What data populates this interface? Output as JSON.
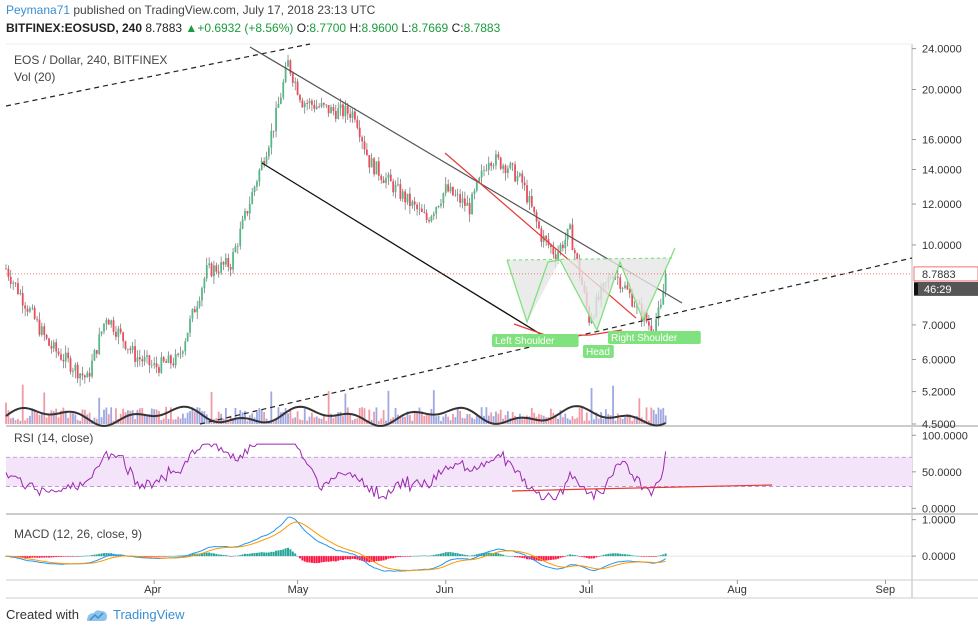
{
  "header": {
    "author": "Peymana71",
    "published_text": " published on TradingView.com, July 17, 2018 23:13 UTC",
    "symbol": "BITFINEX:EOSUSD, 240",
    "last": "8.7883",
    "change": "+0.6932 (+8.56%)",
    "o_label": "O:",
    "o_value": "8.7700",
    "h_label": "H:",
    "h_value": "8.9600",
    "l_label": "L:",
    "l_value": "8.7669",
    "c_label": "C:",
    "c_value": "8.7883"
  },
  "footer": {
    "created_with": "Created with",
    "brand": "TradingView"
  },
  "colors": {
    "up": "#26a69a",
    "down": "#ef5350",
    "candle_up": "#53b987",
    "candle_down": "#eb4d5c",
    "rsi": "#9c27b0",
    "macd_line": "#2196f3",
    "signal_line": "#ff9800",
    "pattern_green": "#80e27e",
    "trend_red": "#e53935",
    "link_blue": "#3a8fd1"
  },
  "chart_data": [
    {
      "type": "candlestick",
      "title": "EOS / Dollar, 240, BITFINEX",
      "subtitle": "Vol (20)",
      "y_scale": "log",
      "ylim": [
        4.5,
        24.5
      ],
      "y_ticks": [
        "24.0000",
        "20.0000",
        "16.0000",
        "14.0000",
        "12.0000",
        "10.0000",
        "7.0000",
        "6.0000",
        "5.2000",
        "4.5000"
      ],
      "x_ticks": [
        "Apr",
        "May",
        "Jun",
        "Jul",
        "Aug",
        "Sep"
      ],
      "last_price_label": "8.7883",
      "countdown_label": "46:29",
      "approx_closes": [
        {
          "date": "2018-03-01",
          "close": 9.0
        },
        {
          "date": "2018-03-10",
          "close": 6.4
        },
        {
          "date": "2018-03-18",
          "close": 5.5
        },
        {
          "date": "2018-03-22",
          "close": 7.3
        },
        {
          "date": "2018-03-28",
          "close": 6.1
        },
        {
          "date": "2018-04-01",
          "close": 5.8
        },
        {
          "date": "2018-04-06",
          "close": 6.0
        },
        {
          "date": "2018-04-12",
          "close": 8.9
        },
        {
          "date": "2018-04-17",
          "close": 9.2
        },
        {
          "date": "2018-04-22",
          "close": 13.0
        },
        {
          "date": "2018-04-26",
          "close": 17.0
        },
        {
          "date": "2018-04-29",
          "close": 22.5
        },
        {
          "date": "2018-05-02",
          "close": 19.0
        },
        {
          "date": "2018-05-08",
          "close": 18.2
        },
        {
          "date": "2018-05-13",
          "close": 18.0
        },
        {
          "date": "2018-05-16",
          "close": 14.5
        },
        {
          "date": "2018-05-22",
          "close": 12.7
        },
        {
          "date": "2018-05-28",
          "close": 11.2
        },
        {
          "date": "2018-06-01",
          "close": 12.8
        },
        {
          "date": "2018-06-06",
          "close": 11.8
        },
        {
          "date": "2018-06-10",
          "close": 14.8
        },
        {
          "date": "2018-06-14",
          "close": 14.2
        },
        {
          "date": "2018-06-17",
          "close": 13.2
        },
        {
          "date": "2018-06-21",
          "close": 10.4
        },
        {
          "date": "2018-06-24",
          "close": 9.6
        },
        {
          "date": "2018-06-27",
          "close": 10.6
        },
        {
          "date": "2018-06-29",
          "close": 8.8
        },
        {
          "date": "2018-07-01",
          "close": 7.2
        },
        {
          "date": "2018-07-04",
          "close": 8.2
        },
        {
          "date": "2018-07-06",
          "close": 8.9
        },
        {
          "date": "2018-07-08",
          "close": 8.4
        },
        {
          "date": "2018-07-11",
          "close": 7.6
        },
        {
          "date": "2018-07-14",
          "close": 6.9
        },
        {
          "date": "2018-07-16",
          "close": 7.5
        },
        {
          "date": "2018-07-17",
          "close": 8.79
        }
      ],
      "annotations": [
        "Left Shoulder",
        "Head",
        "Right Shoulder"
      ]
    },
    {
      "type": "line",
      "title": "RSI (14, close)",
      "ylim": [
        -5,
        110
      ],
      "y_ticks": [
        "100.0000",
        "50.0000",
        "0.0000"
      ],
      "band": [
        30,
        70
      ]
    },
    {
      "type": "line",
      "title": "MACD (12, 26, close, 9)",
      "ylim": [
        -0.6,
        1.1
      ],
      "y_ticks": [
        "1.0000",
        "0.0000"
      ],
      "series": [
        {
          "name": "MACD"
        },
        {
          "name": "Signal"
        },
        {
          "name": "Histogram"
        }
      ]
    }
  ]
}
